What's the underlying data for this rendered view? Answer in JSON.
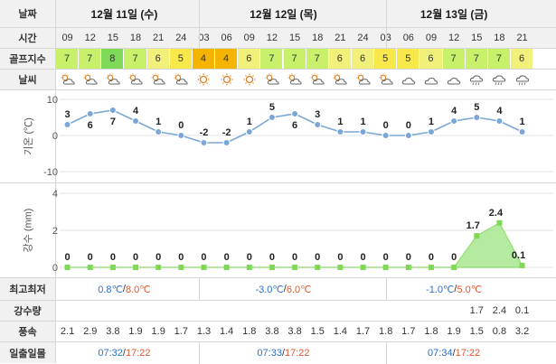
{
  "labels": {
    "date": "날짜",
    "time": "시간",
    "golf": "골프지수",
    "weather": "날씨",
    "temp_axis": "기온 (℃)",
    "rain_axis": "강수 (mm)",
    "minmax": "최고최저",
    "rain": "강수량",
    "wind": "풍속",
    "sun": "일출일몰"
  },
  "days": [
    {
      "label": "12월 11일 (수)",
      "minmax_min": "0.8℃",
      "minmax_sep": "/",
      "minmax_max": "8.0℃",
      "sunrise": "07:32",
      "sun_sep": "/",
      "sunset": "17:22"
    },
    {
      "label": "12월 12일 (목)",
      "minmax_min": "-3.0℃",
      "minmax_sep": "/",
      "minmax_max": "6.0℃",
      "sunrise": "07:33",
      "sun_sep": "/",
      "sunset": "17:22"
    },
    {
      "label": "12월 13일 (금)",
      "minmax_min": "-1.0℃",
      "minmax_sep": "/",
      "minmax_max": "5.0℃",
      "sunrise": "07:34",
      "sun_sep": "/",
      "sunset": "17:22"
    }
  ],
  "hours": [
    "09",
    "12",
    "15",
    "18",
    "21",
    "24",
    "03",
    "06",
    "09",
    "12",
    "15",
    "18",
    "21",
    "24",
    "03",
    "06",
    "09",
    "12",
    "15",
    "18",
    "21"
  ],
  "golf": [
    "7",
    "7",
    "8",
    "7",
    "6",
    "5",
    "4",
    "4",
    "6",
    "7",
    "7",
    "7",
    "6",
    "6",
    "5",
    "5",
    "6",
    "7",
    "7",
    "7",
    "6"
  ],
  "golf_colors": {
    "8": "#7ed957",
    "7": "#c9f06b",
    "6": "#f0f07a",
    "5": "#f8e84a",
    "4": "#f4b400"
  },
  "weather_icons": [
    "partly-cloudy-icon",
    "partly-cloudy-icon",
    "partly-cloudy-icon",
    "partly-cloudy-icon",
    "partly-cloudy-icon",
    "partly-cloudy-icon",
    "sun-icon",
    "sun-icon",
    "sun-icon",
    "partly-cloudy-icon",
    "partly-cloudy-icon",
    "partly-cloudy-icon",
    "partly-cloudy-icon",
    "partly-cloudy-icon",
    "partly-cloudy-icon",
    "cloudy-icon",
    "cloudy-icon",
    "cloudy-icon",
    "rain-icon",
    "rain-icon",
    "rain-icon"
  ],
  "rain_amounts": [
    "",
    "",
    "",
    "",
    "",
    "",
    "",
    "",
    "",
    "",
    "",
    "",
    "",
    "",
    "",
    "",
    "",
    "",
    "1.7",
    "2.4",
    "0.1"
  ],
  "wind": [
    "2.1",
    "2.9",
    "3.8",
    "1.9",
    "1.9",
    "1.7",
    "1.3",
    "1.4",
    "1.8",
    "3.8",
    "3.8",
    "1.5",
    "1.4",
    "1.7",
    "1.8",
    "1.7",
    "1.8",
    "1.9",
    "1.5",
    "0.8",
    "3.2"
  ],
  "chart_data": [
    {
      "type": "line",
      "ylabel": "기온 (℃)",
      "ylim": [
        -10,
        10
      ],
      "yticks": [
        10,
        0,
        -10
      ],
      "x": [
        "09",
        "12",
        "15",
        "18",
        "21",
        "24",
        "03",
        "06",
        "09",
        "12",
        "15",
        "18",
        "21",
        "24",
        "03",
        "06",
        "09",
        "12",
        "15",
        "18",
        "21"
      ],
      "values": [
        3,
        6,
        7,
        4,
        1,
        0,
        -2,
        -2,
        1,
        5,
        6,
        3,
        1,
        1,
        0,
        0,
        1,
        4,
        5,
        4,
        1
      ],
      "color": "#7aa6d8"
    },
    {
      "type": "area",
      "ylabel": "강수 (mm)",
      "ylim": [
        0,
        4
      ],
      "yticks": [
        4,
        2,
        0
      ],
      "x": [
        "09",
        "12",
        "15",
        "18",
        "21",
        "24",
        "03",
        "06",
        "09",
        "12",
        "15",
        "18",
        "21",
        "24",
        "03",
        "06",
        "09",
        "12",
        "15",
        "18",
        "21"
      ],
      "values": [
        0,
        0,
        0,
        0,
        0,
        0,
        0,
        0,
        0,
        0,
        0,
        0,
        0,
        0,
        0,
        0,
        0,
        0,
        1.7,
        2.4,
        0.1
      ],
      "color": "#7ed957"
    }
  ]
}
